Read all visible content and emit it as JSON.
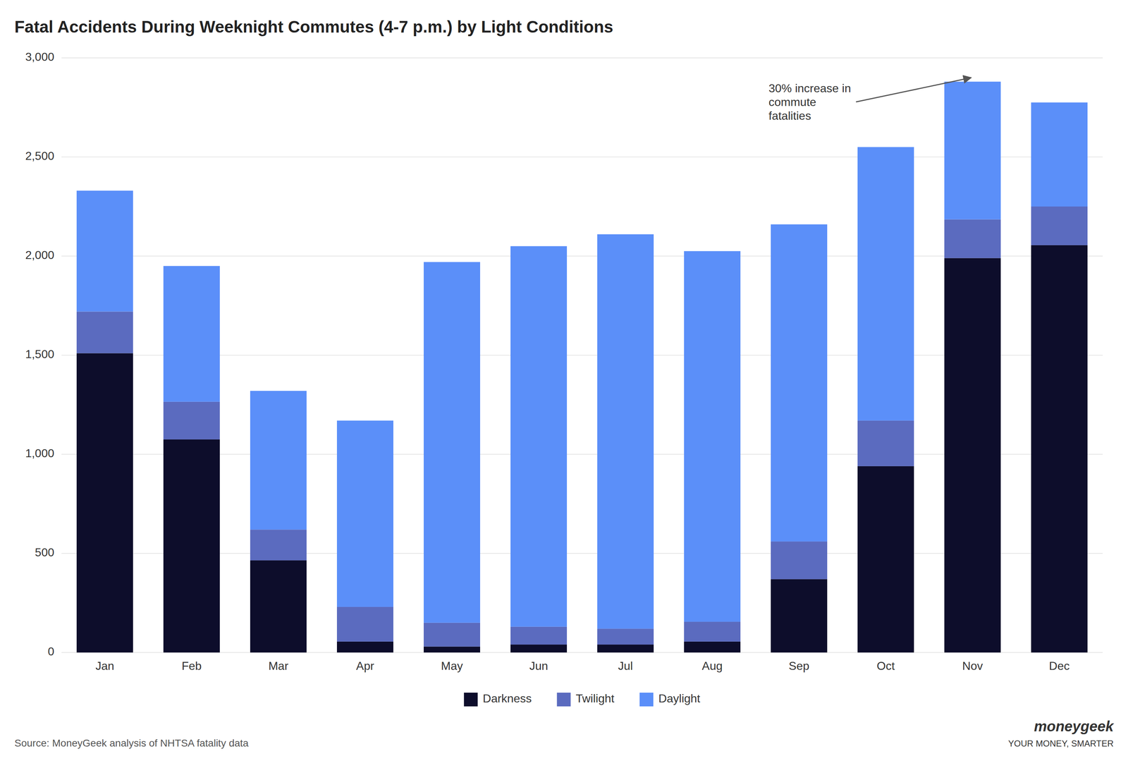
{
  "chart_data": {
    "type": "bar",
    "stacked": true,
    "title": "Fatal Accidents During Weeknight Commutes (4-7 p.m.) by Light Conditions",
    "categories": [
      "Jan",
      "Feb",
      "Mar",
      "Apr",
      "May",
      "Jun",
      "Jul",
      "Aug",
      "Sep",
      "Oct",
      "Nov",
      "Dec"
    ],
    "series": [
      {
        "name": "Darkness",
        "color": "#0d0d2b",
        "values": [
          1510,
          1075,
          465,
          55,
          30,
          40,
          40,
          55,
          370,
          940,
          1990,
          2055
        ]
      },
      {
        "name": "Twilight",
        "color": "#5b6bbf",
        "values": [
          210,
          190,
          155,
          175,
          120,
          90,
          80,
          100,
          190,
          230,
          195,
          195
        ]
      },
      {
        "name": "Daylight",
        "color": "#5b8ff9",
        "values": [
          610,
          685,
          700,
          940,
          1820,
          1920,
          1990,
          1870,
          1600,
          1380,
          695,
          525
        ]
      }
    ],
    "ylim": [
      0,
      3000
    ],
    "yticks": [
      0,
      500,
      {
        "value": 1000,
        "label": "1,000"
      },
      {
        "value": 1500,
        "label": "1,500"
      },
      {
        "value": 2000,
        "label": "2,000"
      },
      {
        "value": 2500,
        "label": "2,500"
      },
      {
        "value": 3000,
        "label": "3,000"
      }
    ],
    "grid": true,
    "legend": "bottom",
    "annotations": [
      {
        "text": "30% increase in\ncommute\nfatalities",
        "x": "Nov",
        "y": 2900
      }
    ],
    "source": "Source: MoneyGeek analysis of NHTSA fatality data",
    "logo": [
      "moneygeek",
      "YOUR MONEY, SMARTER"
    ]
  }
}
